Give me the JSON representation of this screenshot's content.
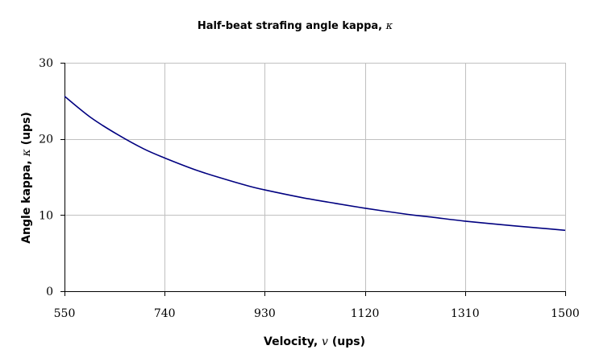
{
  "chart_data": {
    "type": "line",
    "title": "Half-beat strafing angle kappa, ",
    "title_symbol": "κ",
    "xlabel": "Velocity, ",
    "xlabel_symbol": "v",
    "xlabel_unit": " (ups)",
    "ylabel": "Angle kappa, ",
    "ylabel_symbol": "κ",
    "ylabel_unit": " (ups)",
    "xlim": [
      550,
      1500
    ],
    "ylim": [
      0,
      30
    ],
    "x_ticks": [
      "550",
      "740",
      "930",
      "1120",
      "1310",
      "1500"
    ],
    "y_ticks": [
      "0",
      "10",
      "20",
      "30"
    ],
    "grid": true,
    "legend": "none",
    "series": [
      {
        "color": "#000080",
        "x": [
          550,
          600,
          650,
          700,
          740,
          800,
          850,
          900,
          930,
          1000,
          1050,
          1120,
          1200,
          1250,
          1310,
          1400,
          1450,
          1500
        ],
        "y": [
          25.6,
          22.8,
          20.6,
          18.7,
          17.5,
          15.9,
          14.8,
          13.8,
          13.3,
          12.3,
          11.7,
          10.9,
          10.1,
          9.7,
          9.2,
          8.6,
          8.3,
          8.0
        ]
      }
    ]
  }
}
